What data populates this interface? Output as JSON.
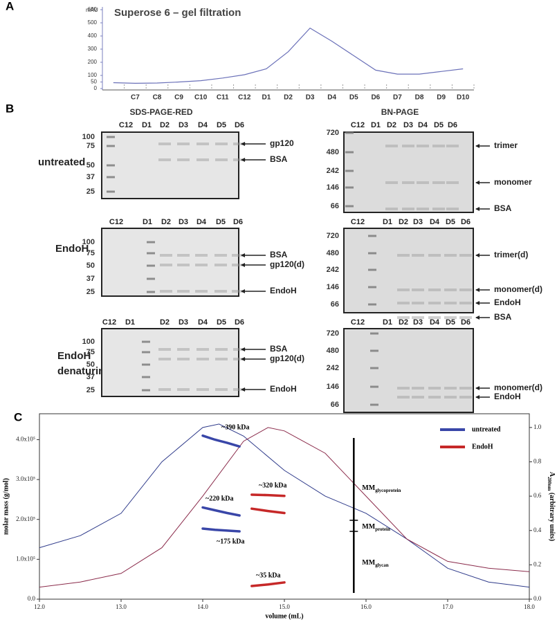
{
  "chart_data": [
    {
      "panel": "A",
      "type": "line",
      "title": "Superose 6 – gel filtration",
      "ylabel": "mAU",
      "categories": [
        null,
        "C7",
        "C8",
        "C9",
        "C10",
        "C11",
        "C12",
        "D1",
        "D2",
        "D3",
        "D4",
        "D5",
        "D6",
        "D7",
        "D8",
        "D9",
        "D10"
      ],
      "values": [
        45,
        40,
        42,
        50,
        60,
        80,
        105,
        150,
        280,
        460,
        360,
        250,
        140,
        110,
        110,
        130,
        150
      ],
      "color": "#6a70b8",
      "ylim": [
        0,
        600
      ],
      "yticks": [
        0,
        50,
        100,
        200,
        300,
        400,
        500,
        600
      ]
    },
    {
      "panel": "C",
      "type": "line",
      "xlabel": "volume (mL)",
      "ylabel": "molar mass (g/mol)",
      "y2label": {
        "text": "A",
        "sub": "280nm",
        "rest": " (arbitrary units)"
      },
      "xlim": [
        12,
        18
      ],
      "xticks": [
        {
          "value": 12,
          "label": "12.0"
        },
        {
          "value": 13,
          "label": "13.0"
        },
        {
          "value": 14,
          "label": "14.0"
        },
        {
          "value": 15,
          "label": "15.0"
        },
        {
          "value": 16,
          "label": "16.0"
        },
        {
          "value": 17,
          "label": "17.0"
        },
        {
          "value": 18,
          "label": "18.0"
        }
      ],
      "ylim": [
        0,
        465000
      ],
      "yticks": [
        {
          "value": 0,
          "label": "0.0"
        },
        {
          "value": 100000,
          "label": "1.0x10⁵"
        },
        {
          "value": 200000,
          "label": "2.0x10⁵"
        },
        {
          "value": 300000,
          "label": "3.0x10⁵"
        },
        {
          "value": 400000,
          "label": "4.0x10⁵"
        }
      ],
      "y2lim": [
        0,
        1.08
      ],
      "y2ticks": [
        {
          "value": 0,
          "label": "0.0"
        },
        {
          "value": 0.2,
          "label": "0.2"
        },
        {
          "value": 0.4,
          "label": "0.4"
        },
        {
          "value": 0.6,
          "label": "0.6"
        },
        {
          "value": 0.8,
          "label": "0.8"
        },
        {
          "value": 1,
          "label": "1.0"
        }
      ],
      "series": [
        {
          "name": "untreated",
          "color": "#3946a8",
          "x": [
            14.0,
            14.15,
            14.3,
            14.45,
            14.45,
            14.0,
            14.15,
            14.3,
            14.45,
            14.45,
            14.0,
            14.15,
            14.3,
            14.45
          ],
          "values": [
            410000,
            400000,
            392000,
            383000,
            null,
            230000,
            223000,
            216000,
            210000,
            null,
            177000,
            174000,
            172000,
            170000
          ]
        },
        {
          "name": "EndoH",
          "color": "#c62828",
          "x": [
            14.6,
            14.8,
            15.0,
            15.0,
            14.6,
            14.8,
            15.0,
            15.0,
            14.6,
            14.8,
            15.0
          ],
          "values": [
            262000,
            261000,
            259000,
            null,
            227000,
            221000,
            216000,
            null,
            33000,
            37000,
            42000
          ]
        }
      ],
      "traces": [
        {
          "color": "#2e3a8a",
          "axis": "y2",
          "x": [
            12.0,
            12.5,
            13.0,
            13.5,
            14.0,
            14.2,
            14.5,
            15.0,
            15.5,
            16.0,
            16.5,
            17.0,
            17.5,
            18.0
          ],
          "values": [
            0.3,
            0.37,
            0.5,
            0.8,
            1.0,
            1.02,
            0.95,
            0.75,
            0.6,
            0.5,
            0.35,
            0.18,
            0.1,
            0.07
          ]
        },
        {
          "color": "#8a2a4a",
          "axis": "y2",
          "x": [
            12.0,
            12.5,
            13.0,
            13.5,
            14.0,
            14.5,
            14.8,
            15.0,
            15.5,
            16.0,
            16.5,
            17.0,
            17.5,
            18.0
          ],
          "values": [
            0.07,
            0.1,
            0.15,
            0.3,
            0.6,
            0.92,
            1.0,
            0.98,
            0.85,
            0.6,
            0.35,
            0.22,
            0.18,
            0.16
          ]
        }
      ],
      "annotations": [
        "~390 kDa",
        "~320 kDa",
        "~220 kDa",
        "~175 kDa",
        "~35 kDa"
      ],
      "mm_labels": [
        {
          "text": "MM",
          "sub": "glycoprotein"
        },
        {
          "text": "MM",
          "sub": "protein"
        },
        {
          "text": "MM",
          "sub": "glycan"
        }
      ],
      "divider_x": 15.85
    }
  ],
  "panel_b": {
    "label": "B",
    "row_labels": [
      [
        "untreated"
      ],
      [
        "EndoH"
      ],
      [
        "EndoH",
        "denaturing"
      ]
    ],
    "columns": [
      {
        "title": "SDS-PAGE-RED",
        "gels": [
          {
            "lanes": [
              "C12",
              "D1",
              "D2",
              "D3",
              "D4",
              "D5",
              "D6"
            ],
            "markers": [
              "100",
              "75",
              "50",
              "37",
              "25"
            ],
            "labels": [
              "gp120",
              "BSA"
            ]
          },
          {
            "lanes": [
              "C12",
              "D1",
              "D2",
              "D3",
              "D4",
              "D5",
              "D6"
            ],
            "markers": [
              "100",
              "75",
              "50",
              "37",
              "25"
            ],
            "labels": [
              "BSA",
              "gp120(d)",
              "EndoH"
            ]
          },
          {
            "lanes": [
              "C12",
              "D1",
              "D2",
              "D3",
              "D4",
              "D5",
              "D6"
            ],
            "markers": [
              "100",
              "75",
              "50",
              "37",
              "25"
            ],
            "labels": [
              "BSA",
              "gp120(d)",
              "EndoH"
            ]
          }
        ]
      },
      {
        "title": "BN-PAGE",
        "gels": [
          {
            "lanes": [
              "C12",
              "D1",
              "D2",
              "D3",
              "D4",
              "D5",
              "D6"
            ],
            "markers": [
              "720",
              "480",
              "242",
              "146",
              "66"
            ],
            "labels": [
              "trimer",
              "monomer",
              "BSA"
            ]
          },
          {
            "lanes": [
              "C12",
              "D1",
              "D2",
              "D3",
              "D4",
              "D5",
              "D6"
            ],
            "markers": [
              "720",
              "480",
              "242",
              "146",
              "66"
            ],
            "labels": [
              "trimer(d)",
              "monomer(d)",
              "EndoH",
              "BSA"
            ]
          },
          {
            "lanes": [
              "C12",
              "D1",
              "D2",
              "D3",
              "D4",
              "D5",
              "D6"
            ],
            "markers": [
              "720",
              "480",
              "242",
              "146",
              "66"
            ],
            "labels": [
              "monomer(d)",
              "EndoH"
            ]
          }
        ]
      }
    ]
  }
}
